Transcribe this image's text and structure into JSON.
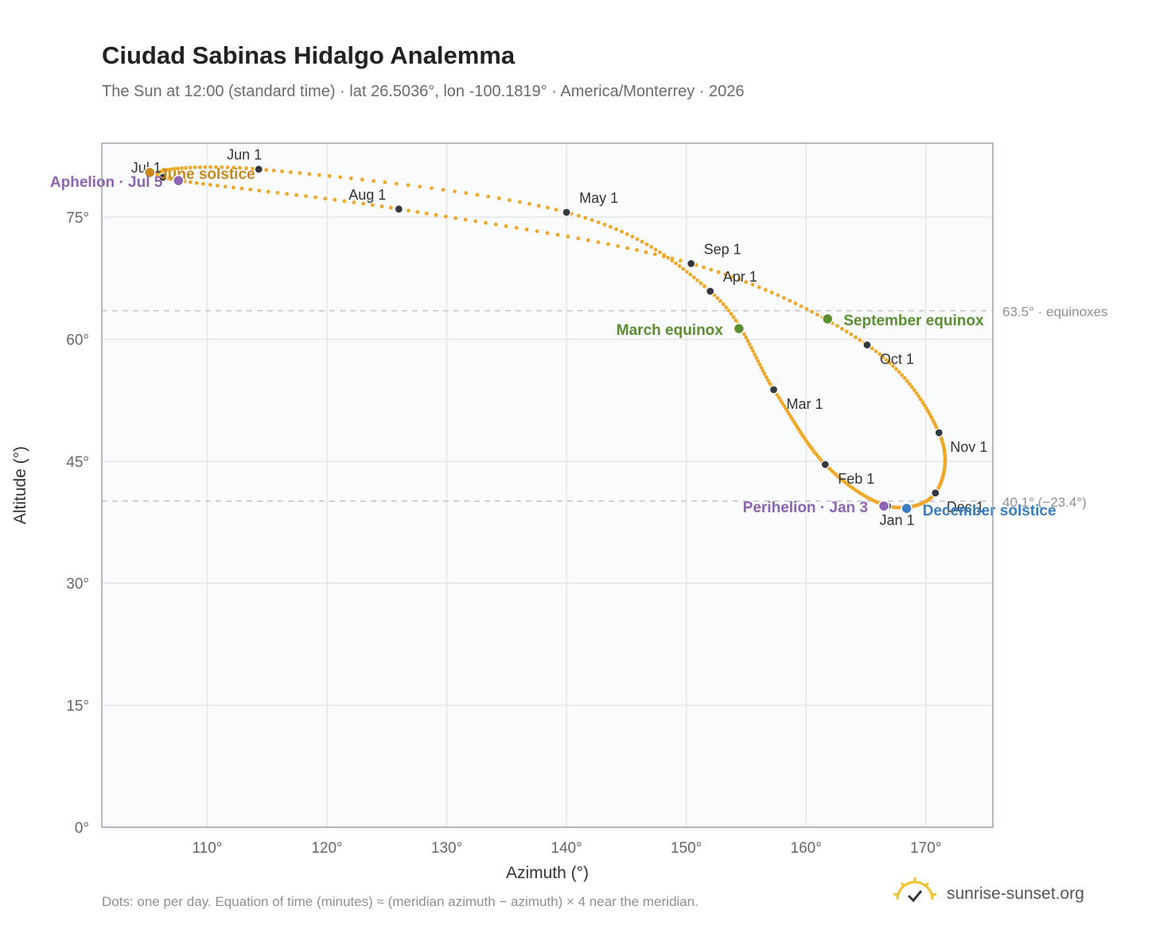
{
  "title": "Ciudad Sabinas Hidalgo Analemma",
  "subtitle": "The Sun at 12:00 (standard time) · lat 26.5036°, lon -100.1819° · America/Monterrey · 2026",
  "footnote": "Dots: one per day. Equation of time (minutes) ≈ (meridian azimuth − azimuth) × 4 near the meridian.",
  "brand": {
    "text": "sunrise-sunset.org",
    "logo_icon": "sun-check-icon"
  },
  "colors": {
    "curve": "#f0a829",
    "month_marker": "#333840",
    "equinox": "#5a8e2e",
    "solstice_june": "#c8891a",
    "solstice_december": "#3a7ec0",
    "apsis": "#8f63b3",
    "reference_line": "#c0c5cc",
    "plot_background": "#f9fbfd",
    "grid": "#e3e7ec",
    "frame": "#9aa3ae"
  },
  "chart_data": {
    "type": "scatter",
    "xlabel": "Azimuth (°)",
    "ylabel": "Altitude (°)",
    "xlim": [
      101.2,
      175.6
    ],
    "ylim": [
      0,
      84.1
    ],
    "xticks": [
      {
        "v": 110,
        "label": "110°"
      },
      {
        "v": 120,
        "label": "120°"
      },
      {
        "v": 130,
        "label": "130°"
      },
      {
        "v": 140,
        "label": "140°"
      },
      {
        "v": 150,
        "label": "150°"
      },
      {
        "v": 160,
        "label": "160°"
      },
      {
        "v": 170,
        "label": "170°"
      }
    ],
    "yticks": [
      {
        "v": 0,
        "label": "0°"
      },
      {
        "v": 15,
        "label": "15°"
      },
      {
        "v": 30,
        "label": "30°"
      },
      {
        "v": 45,
        "label": "45°"
      },
      {
        "v": 60,
        "label": "60°"
      },
      {
        "v": 75,
        "label": "75°"
      }
    ],
    "grid": true,
    "reference_lines": [
      {
        "y": 63.5,
        "label": "63.5° · equinoxes"
      },
      {
        "y": 40.1,
        "label": "40.1° (−23.4°)"
      }
    ],
    "month_markers": [
      {
        "label": "Jan 1",
        "az": 166.8,
        "alt": 39.5
      },
      {
        "label": "Feb 1",
        "az": 161.6,
        "alt": 44.6
      },
      {
        "label": "Mar 1",
        "az": 157.3,
        "alt": 53.8
      },
      {
        "label": "Apr 1",
        "az": 152.0,
        "alt": 65.9
      },
      {
        "label": "May 1",
        "az": 140.0,
        "alt": 75.6
      },
      {
        "label": "Jun 1",
        "az": 114.3,
        "alt": 80.9
      },
      {
        "label": "Jul 1",
        "az": 106.3,
        "alt": 79.9
      },
      {
        "label": "Aug 1",
        "az": 126.0,
        "alt": 76.0
      },
      {
        "label": "Sep 1",
        "az": 150.4,
        "alt": 69.3
      },
      {
        "label": "Oct 1",
        "az": 165.1,
        "alt": 59.3
      },
      {
        "label": "Nov 1",
        "az": 171.1,
        "alt": 48.5
      },
      {
        "label": "Dec 1",
        "az": 170.8,
        "alt": 41.1
      }
    ],
    "events": [
      {
        "label": "March equinox",
        "az": 154.4,
        "alt": 61.3,
        "kind": "equinox"
      },
      {
        "label": "September equinox",
        "az": 161.8,
        "alt": 62.5,
        "kind": "equinox"
      },
      {
        "label": "June solstice",
        "az": 105.2,
        "alt": 80.5,
        "kind": "solstice_june"
      },
      {
        "label": "December solstice",
        "az": 168.4,
        "alt": 39.2,
        "kind": "solstice_december"
      },
      {
        "label": "Perihelion · Jan 3",
        "az": 166.5,
        "alt": 39.5,
        "kind": "apsis"
      },
      {
        "label": "Aphelion · Jul 5",
        "az": 107.6,
        "alt": 79.5,
        "kind": "apsis"
      }
    ]
  }
}
